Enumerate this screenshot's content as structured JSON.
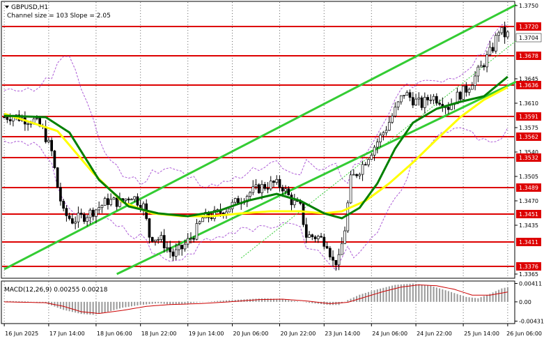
{
  "chart_data": {
    "type": "candlestick",
    "symbol_line": "GBPUSD,H1",
    "channel_note": "Channel size = 103 Slope = 2.05",
    "current_price_label": "1.3704",
    "price_axis": {
      "ylim": [
        1.336,
        1.3755
      ],
      "ticks": [
        "1.3750",
        "1.3645",
        "1.3610",
        "1.3575",
        "1.3540",
        "1.3505",
        "1.3470",
        "1.3435",
        "1.3365"
      ]
    },
    "levels": [
      {
        "price": 1.372,
        "label": "1.3720"
      },
      {
        "price": 1.3678,
        "label": "1.3678"
      },
      {
        "price": 1.3636,
        "label": "1.3636"
      },
      {
        "price": 1.3591,
        "label": "1.3591"
      },
      {
        "price": 1.3562,
        "label": "1.3562"
      },
      {
        "price": 1.3532,
        "label": "1.3532"
      },
      {
        "price": 1.3489,
        "label": "1.3489"
      },
      {
        "price": 1.3451,
        "label": "1.3451"
      },
      {
        "price": 1.3411,
        "label": "1.3411"
      },
      {
        "price": 1.3376,
        "label": "1.3376"
      }
    ],
    "x_labels": [
      "16 Jun 2025",
      "17 Jun 14:00",
      "18 Jun 06:00",
      "18 Jun 22:00",
      "19 Jun 14:00",
      "20 Jun 06:00",
      "20 Jun 22:00",
      "23 Jun 14:00",
      "24 Jun 06:00",
      "24 Jun 22:00",
      "25 Jun 14:00",
      "26 Jun 06:00"
    ],
    "close_path": [
      [
        0,
        1.359
      ],
      [
        3,
        1.3592
      ],
      [
        6,
        1.3588
      ],
      [
        10,
        1.3585
      ],
      [
        13,
        1.3572
      ],
      [
        16,
        1.354
      ],
      [
        18,
        1.349
      ],
      [
        20,
        1.3452
      ],
      [
        23,
        1.3442
      ],
      [
        27,
        1.3448
      ],
      [
        31,
        1.3458
      ],
      [
        35,
        1.347
      ],
      [
        39,
        1.3468
      ],
      [
        43,
        1.3478
      ],
      [
        47,
        1.3462
      ],
      [
        49,
        1.342
      ],
      [
        53,
        1.3414
      ],
      [
        57,
        1.3392
      ],
      [
        60,
        1.3402
      ],
      [
        64,
        1.3422
      ],
      [
        67,
        1.3445
      ],
      [
        71,
        1.345
      ],
      [
        75,
        1.3458
      ],
      [
        79,
        1.347
      ],
      [
        83,
        1.3482
      ],
      [
        87,
        1.349
      ],
      [
        91,
        1.3495
      ],
      [
        94,
        1.349
      ],
      [
        97,
        1.347
      ],
      [
        100,
        1.346
      ],
      [
        102,
        1.342
      ],
      [
        106,
        1.3418
      ],
      [
        109,
        1.341
      ],
      [
        111,
        1.3382
      ],
      [
        113,
        1.3385
      ],
      [
        115,
        1.343
      ],
      [
        117,
        1.35
      ],
      [
        120,
        1.3515
      ],
      [
        123,
        1.3535
      ],
      [
        126,
        1.3555
      ],
      [
        129,
        1.3575
      ],
      [
        132,
        1.36
      ],
      [
        135,
        1.3625
      ],
      [
        138,
        1.3615
      ],
      [
        141,
        1.3608
      ],
      [
        144,
        1.362
      ],
      [
        147,
        1.3615
      ],
      [
        150,
        1.3605
      ],
      [
        153,
        1.362
      ],
      [
        156,
        1.363
      ],
      [
        159,
        1.3648
      ],
      [
        162,
        1.3668
      ],
      [
        165,
        1.369
      ],
      [
        167,
        1.3715
      ],
      [
        169,
        1.3708
      ]
    ],
    "moving_averages": [
      {
        "color": "#ffff00",
        "points": [
          [
            0,
            1.3595
          ],
          [
            18,
            1.357
          ],
          [
            30,
            1.351
          ],
          [
            40,
            1.3468
          ],
          [
            50,
            1.3452
          ],
          [
            60,
            1.3448
          ],
          [
            70,
            1.3448
          ],
          [
            80,
            1.3452
          ],
          [
            90,
            1.3455
          ],
          [
            100,
            1.3455
          ],
          [
            108,
            1.3452
          ],
          [
            114,
            1.3455
          ],
          [
            122,
            1.347
          ],
          [
            130,
            1.3495
          ],
          [
            138,
            1.3525
          ],
          [
            146,
            1.3558
          ],
          [
            154,
            1.359
          ],
          [
            162,
            1.3615
          ],
          [
            170,
            1.3633
          ]
        ]
      },
      {
        "color": "#008000",
        "points": [
          [
            0,
            1.3592
          ],
          [
            14,
            1.359
          ],
          [
            22,
            1.3568
          ],
          [
            32,
            1.35
          ],
          [
            42,
            1.3462
          ],
          [
            52,
            1.3452
          ],
          [
            62,
            1.3448
          ],
          [
            72,
            1.3455
          ],
          [
            82,
            1.347
          ],
          [
            92,
            1.348
          ],
          [
            100,
            1.347
          ],
          [
            108,
            1.3452
          ],
          [
            114,
            1.3445
          ],
          [
            120,
            1.346
          ],
          [
            126,
            1.3495
          ],
          [
            132,
            1.3545
          ],
          [
            138,
            1.3582
          ],
          [
            146,
            1.3602
          ],
          [
            154,
            1.3612
          ],
          [
            162,
            1.362
          ],
          [
            170,
            1.3648
          ]
        ]
      }
    ],
    "channel": {
      "upper": [
        [
          0,
          1.3372
        ],
        [
          170,
          1.3745
        ]
      ],
      "lower": [
        [
          38,
          1.3365
        ],
        [
          170,
          1.3635
        ]
      ],
      "mid": [
        [
          80,
          1.3388
        ],
        [
          170,
          1.369
        ]
      ]
    },
    "macd_label": "MACD(12,26,9) 0.00255 0.00218",
    "macd_ticks": [
      "0.00411",
      "0.00",
      "-0.00431"
    ],
    "macd_ylim": [
      -0.0047,
      0.0045
    ],
    "macd_histogram": [
      [
        0,
        0.0002
      ],
      [
        8,
        0.0001
      ],
      [
        14,
        -0.0003
      ],
      [
        20,
        -0.0018
      ],
      [
        26,
        -0.0027
      ],
      [
        30,
        -0.0029
      ],
      [
        34,
        -0.0024
      ],
      [
        40,
        -0.0013
      ],
      [
        46,
        -0.0007
      ],
      [
        52,
        -0.0003
      ],
      [
        56,
        -0.0006
      ],
      [
        60,
        -0.0005
      ],
      [
        66,
        -0.0001
      ],
      [
        74,
        0.0003
      ],
      [
        82,
        0.0006
      ],
      [
        88,
        0.0008
      ],
      [
        94,
        0.0006
      ],
      [
        98,
        0.0002
      ],
      [
        104,
        -0.0003
      ],
      [
        110,
        -0.0007
      ],
      [
        113,
        -0.0007
      ],
      [
        116,
        0.0004
      ],
      [
        120,
        0.0016
      ],
      [
        126,
        0.0028
      ],
      [
        132,
        0.0038
      ],
      [
        138,
        0.0041
      ],
      [
        144,
        0.0036
      ],
      [
        150,
        0.0024
      ],
      [
        156,
        0.0011
      ],
      [
        160,
        0.0008
      ],
      [
        164,
        0.0018
      ],
      [
        168,
        0.003
      ],
      [
        170,
        0.0033
      ]
    ],
    "macd_signal": [
      [
        0,
        0.0
      ],
      [
        14,
        -0.0002
      ],
      [
        20,
        -0.001
      ],
      [
        26,
        -0.0022
      ],
      [
        32,
        -0.0026
      ],
      [
        40,
        -0.0019
      ],
      [
        48,
        -0.001
      ],
      [
        56,
        -0.0006
      ],
      [
        66,
        -0.0004
      ],
      [
        76,
        0.0
      ],
      [
        86,
        0.0005
      ],
      [
        94,
        0.0006
      ],
      [
        102,
        0.0002
      ],
      [
        110,
        -0.0004
      ],
      [
        116,
        -0.0001
      ],
      [
        122,
        0.0011
      ],
      [
        128,
        0.0023
      ],
      [
        134,
        0.0033
      ],
      [
        140,
        0.0038
      ],
      [
        146,
        0.0036
      ],
      [
        152,
        0.0028
      ],
      [
        158,
        0.0015
      ],
      [
        164,
        0.0015
      ],
      [
        170,
        0.0022
      ]
    ]
  },
  "colors": {
    "level_line": "#dd0000",
    "channel": "#33cc33",
    "candle": "#000000",
    "grid": "#000000",
    "envelope": "#9933cc"
  }
}
